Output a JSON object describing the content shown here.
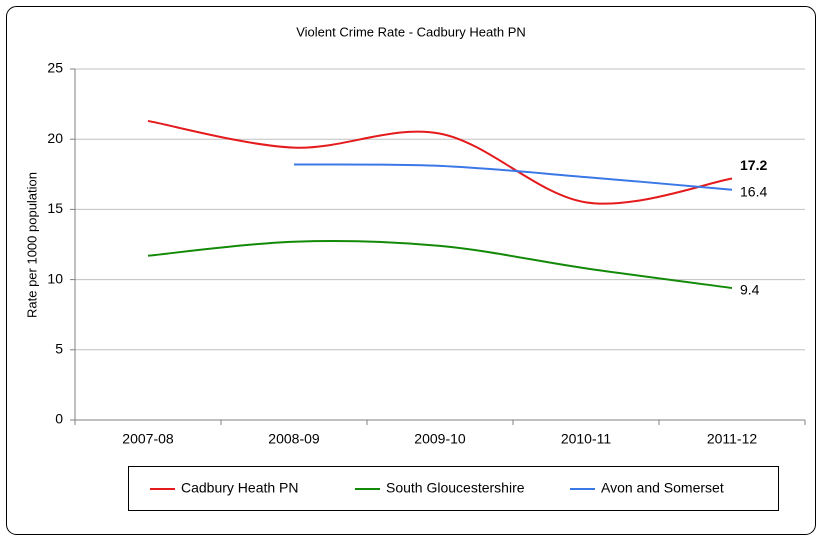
{
  "chart_data": {
    "type": "line",
    "title": "Violent  Crime Rate - Cadbury Heath PN",
    "y_label": "Rate per 1000 population",
    "categories": [
      "2007-08",
      "2008-09",
      "2009-10",
      "2010-11",
      "2011-12"
    ],
    "series": [
      {
        "name": "Cadbury Heath PN",
        "color": "#e41a1c",
        "values": [
          21.3,
          19.4,
          20.4,
          15.5,
          17.2
        ]
      },
      {
        "name": "South Gloucestershire",
        "color": "#138a07",
        "values": [
          11.7,
          12.7,
          12.4,
          10.8,
          9.4
        ]
      },
      {
        "name": "Avon and Somerset",
        "color": "#3b78e7",
        "values": [
          null,
          18.2,
          18.1,
          17.3,
          16.4
        ]
      }
    ],
    "ylim": [
      0,
      25
    ],
    "yticks": [
      0,
      5,
      10,
      15,
      20,
      25
    ],
    "grid": true,
    "legend": "bottom"
  }
}
